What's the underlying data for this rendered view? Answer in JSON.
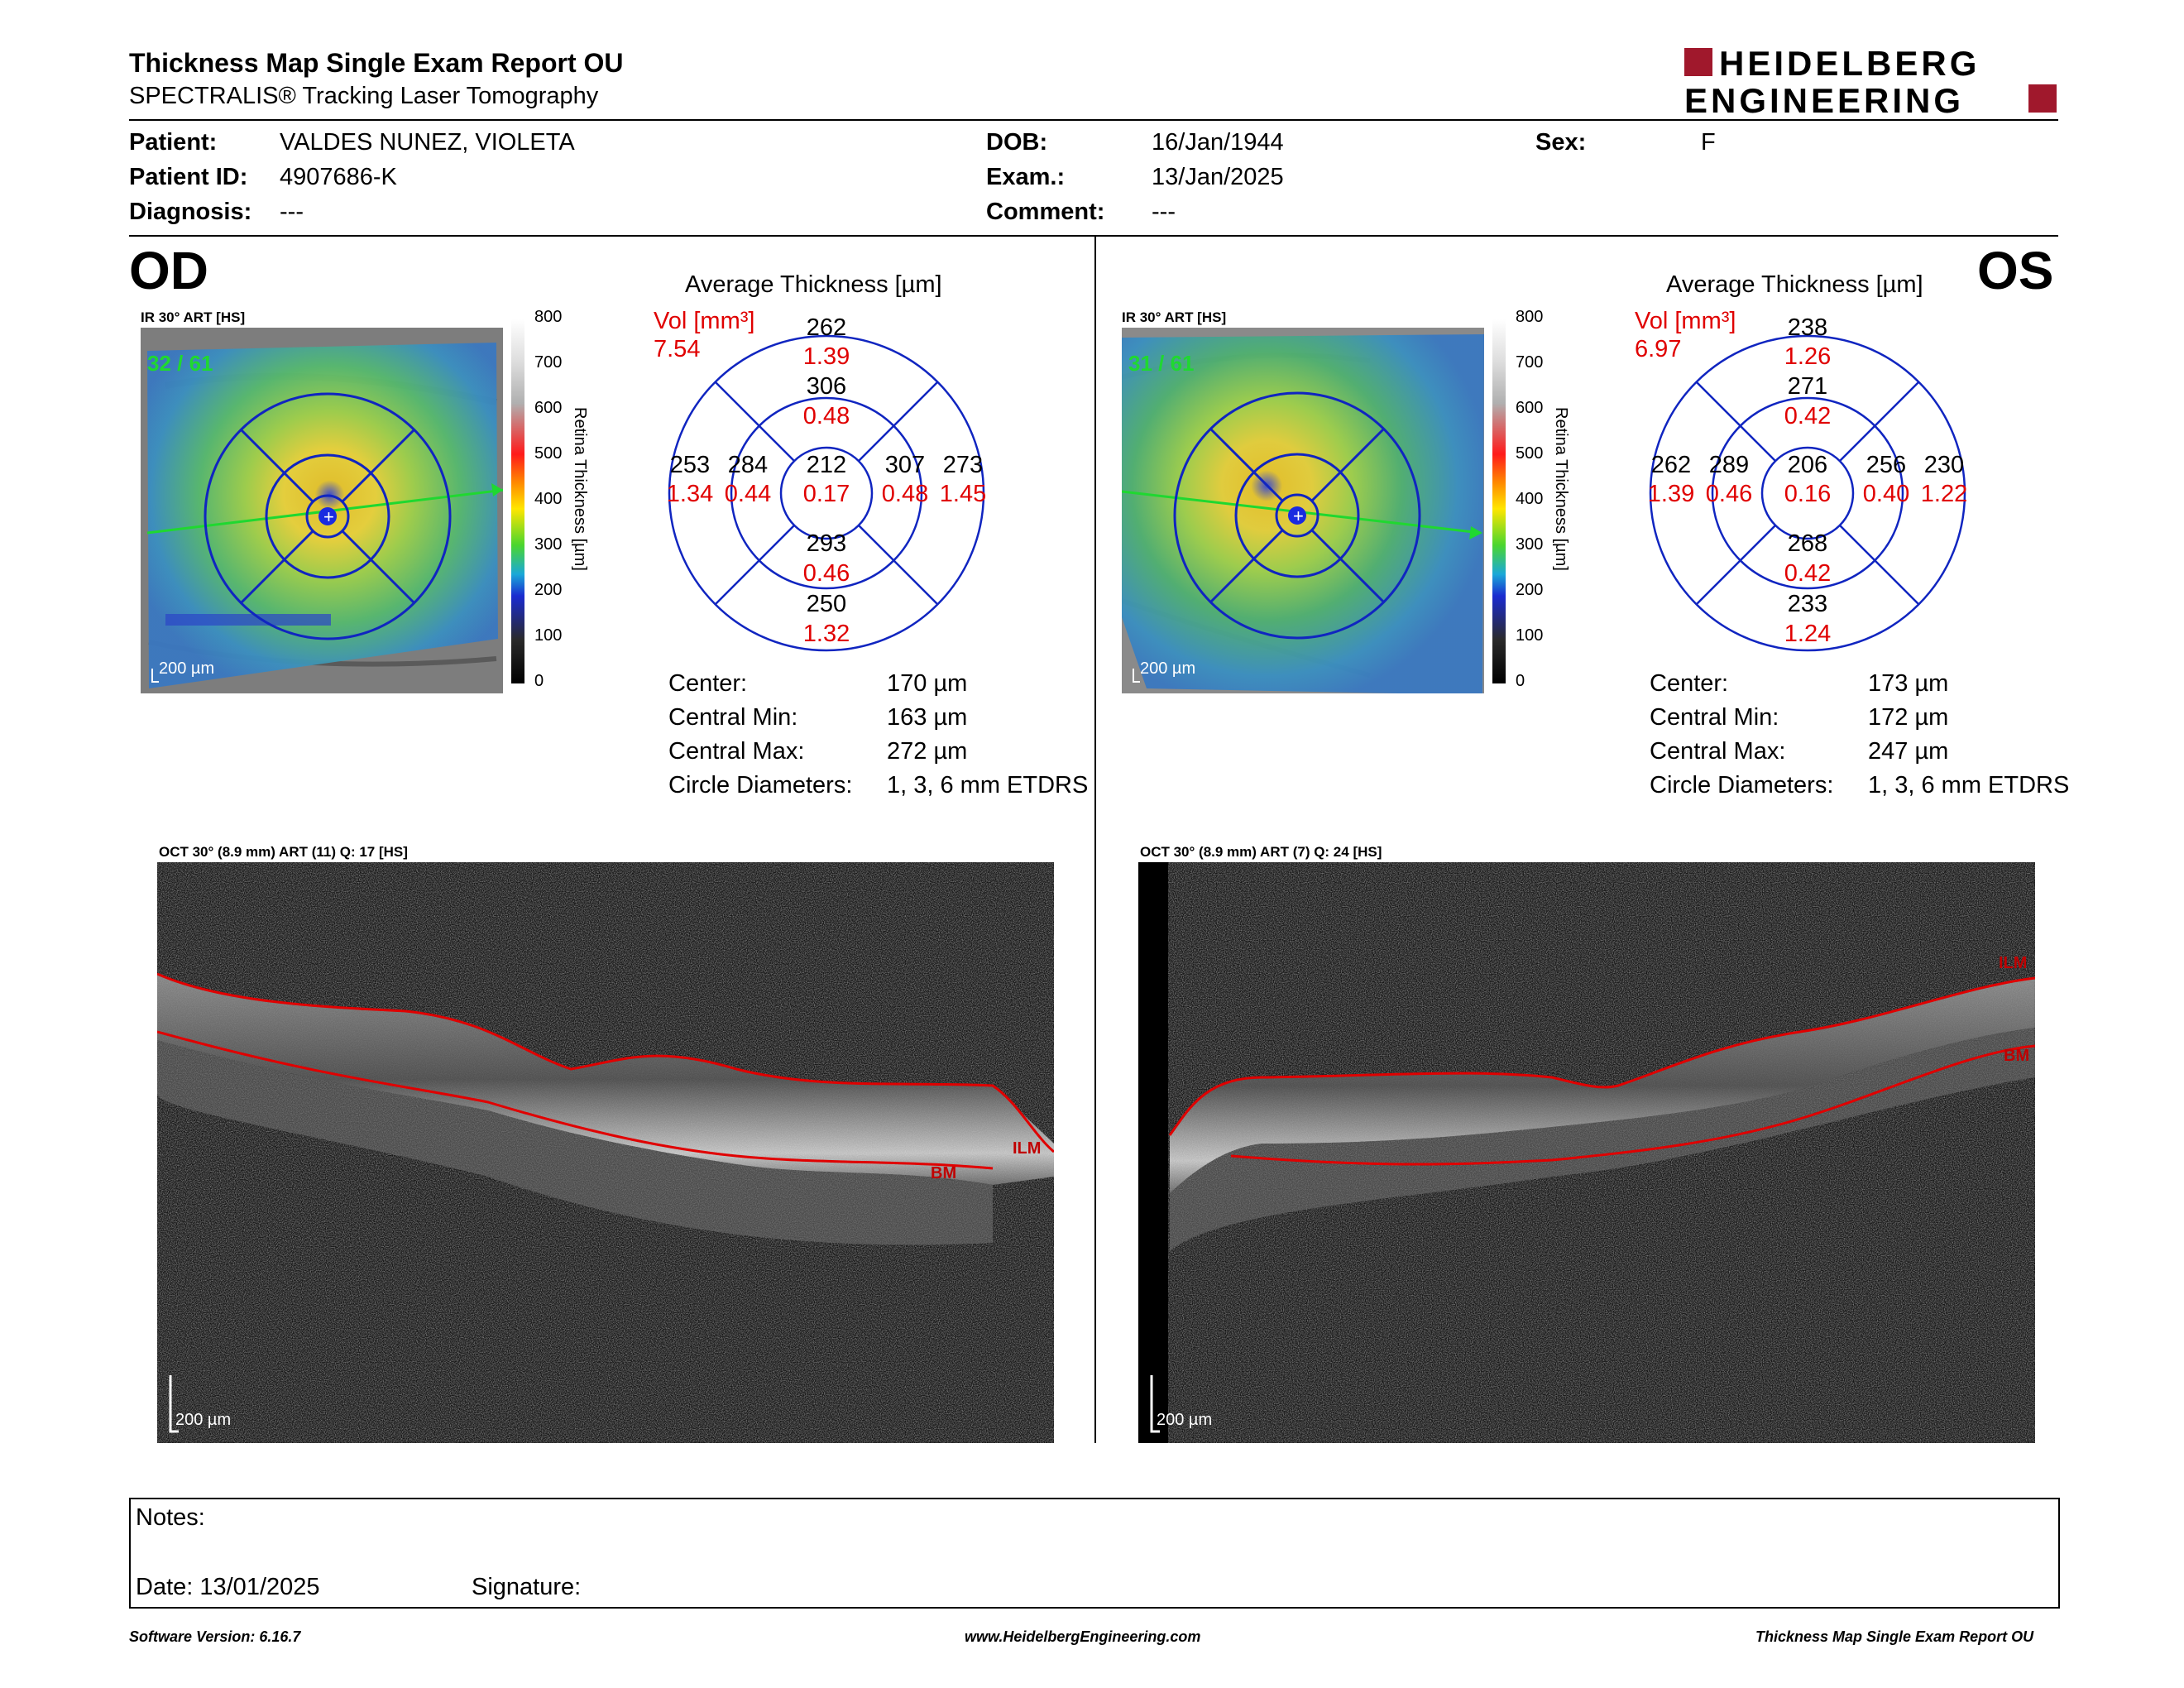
{
  "header": {
    "title": "Thickness Map Single Exam Report OU",
    "subtitle": "SPECTRALIS® Tracking Laser Tomography",
    "logo_line1": "HEIDELBERG",
    "logo_line2": "ENGINEERING",
    "brand_color": "#a0182c"
  },
  "patient": {
    "patient_label": "Patient:",
    "patient_value": "VALDES NUNEZ, VIOLETA",
    "id_label": "Patient ID:",
    "id_value": "4907686-K",
    "diagnosis_label": "Diagnosis:",
    "diagnosis_value": "---",
    "dob_label": "DOB:",
    "dob_value": "16/Jan/1944",
    "exam_label": "Exam.:",
    "exam_value": "13/Jan/2025",
    "comment_label": "Comment:",
    "comment_value": "---",
    "sex_label": "Sex:",
    "sex_value": "F"
  },
  "od": {
    "eye": "OD",
    "map_label": "IR 30° ART [HS]",
    "frame": "32 / 61",
    "scale": "200 µm",
    "avg_title": "Average Thickness [µm]",
    "vol_label": "Vol [mm³]",
    "vol_total": "7.54",
    "etdrs": {
      "center": {
        "t": "212",
        "v": "0.17"
      },
      "inner_sup": {
        "t": "306",
        "v": "0.48"
      },
      "inner_inf": {
        "t": "293",
        "v": "0.46"
      },
      "inner_left": {
        "t": "284",
        "v": "0.44"
      },
      "inner_right": {
        "t": "307",
        "v": "0.48"
      },
      "outer_sup": {
        "t": "262",
        "v": "1.39"
      },
      "outer_inf": {
        "t": "250",
        "v": "1.32"
      },
      "outer_left": {
        "t": "253",
        "v": "1.34"
      },
      "outer_right": {
        "t": "273",
        "v": "1.45"
      }
    },
    "stats": {
      "center_label": "Center:",
      "center_value": "170 µm",
      "min_label": "Central Min:",
      "min_value": "163 µm",
      "max_label": "Central Max:",
      "max_value": "272 µm",
      "diam_label": "Circle Diameters:",
      "diam_value": "1, 3, 6 mm ETDRS"
    },
    "oct_label": "OCT 30° (8.9 mm) ART (11) Q: 17 [HS]",
    "oct_scale": "200 µm",
    "ilm": "ILM",
    "bm": "BM"
  },
  "os": {
    "eye": "OS",
    "map_label": "IR 30° ART [HS]",
    "frame": "31 / 61",
    "scale": "200 µm",
    "avg_title": "Average Thickness [µm]",
    "vol_label": "Vol [mm³]",
    "vol_total": "6.97",
    "etdrs": {
      "center": {
        "t": "206",
        "v": "0.16"
      },
      "inner_sup": {
        "t": "271",
        "v": "0.42"
      },
      "inner_inf": {
        "t": "268",
        "v": "0.42"
      },
      "inner_left": {
        "t": "289",
        "v": "0.46"
      },
      "inner_right": {
        "t": "256",
        "v": "0.40"
      },
      "outer_sup": {
        "t": "238",
        "v": "1.26"
      },
      "outer_inf": {
        "t": "233",
        "v": "1.24"
      },
      "outer_left": {
        "t": "262",
        "v": "1.39"
      },
      "outer_right": {
        "t": "230",
        "v": "1.22"
      }
    },
    "stats": {
      "center_label": "Center:",
      "center_value": "173 µm",
      "min_label": "Central Min:",
      "min_value": "172 µm",
      "max_label": "Central Max:",
      "max_value": "247 µm",
      "diam_label": "Circle Diameters:",
      "diam_value": "1, 3, 6 mm ETDRS"
    },
    "oct_label": "OCT 30° (8.9 mm) ART (7) Q: 24 [HS]",
    "oct_scale": "200 µm",
    "ilm": "ILM",
    "bm": "BM"
  },
  "colorbar": {
    "ticks": [
      "800",
      "700",
      "600",
      "500",
      "400",
      "300",
      "200",
      "100",
      "0"
    ],
    "label": "Retina Thickness [µm]"
  },
  "notes": {
    "notes_label": "Notes:",
    "date_label": "Date: 13/01/2025",
    "signature_label": "Signature:"
  },
  "footer": {
    "software": "Software Version: 6.16.7",
    "website": "www.HeidelbergEngineering.com",
    "report": "Thickness Map Single Exam Report OU"
  }
}
